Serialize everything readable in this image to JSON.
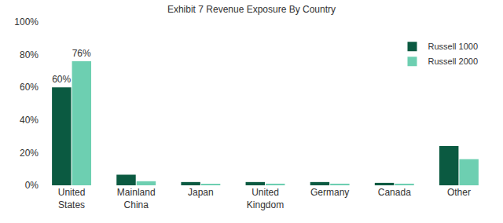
{
  "chart_data": {
    "type": "bar",
    "title": "Exhibit 7 Revenue Exposure By Country",
    "categories": [
      "United States",
      "Mainland China",
      "Japan",
      "United Kingdom",
      "Germany",
      "Canada",
      "Other"
    ],
    "series": [
      {
        "name": "Russell 1000",
        "color": "#0b5a41",
        "values": [
          60,
          6.5,
          2,
          2,
          2,
          1.5,
          24
        ],
        "value_labels": [
          "60%",
          null,
          null,
          null,
          null,
          null,
          null
        ]
      },
      {
        "name": "Russell 2000",
        "color": "#6dcfb1",
        "values": [
          76,
          2.5,
          0.5,
          1,
          1,
          1,
          16
        ],
        "value_labels": [
          "76%",
          null,
          null,
          null,
          null,
          null,
          null
        ]
      }
    ],
    "ylim": [
      0,
      100
    ],
    "yticks": [
      {
        "value": 0,
        "label": "0%"
      },
      {
        "value": 20,
        "label": "20%"
      },
      {
        "value": 40,
        "label": "40%"
      },
      {
        "value": 60,
        "label": "60%"
      },
      {
        "value": 80,
        "label": "80%"
      },
      {
        "value": 100,
        "label": "100%"
      }
    ],
    "grid": false,
    "legend": "upper right"
  }
}
